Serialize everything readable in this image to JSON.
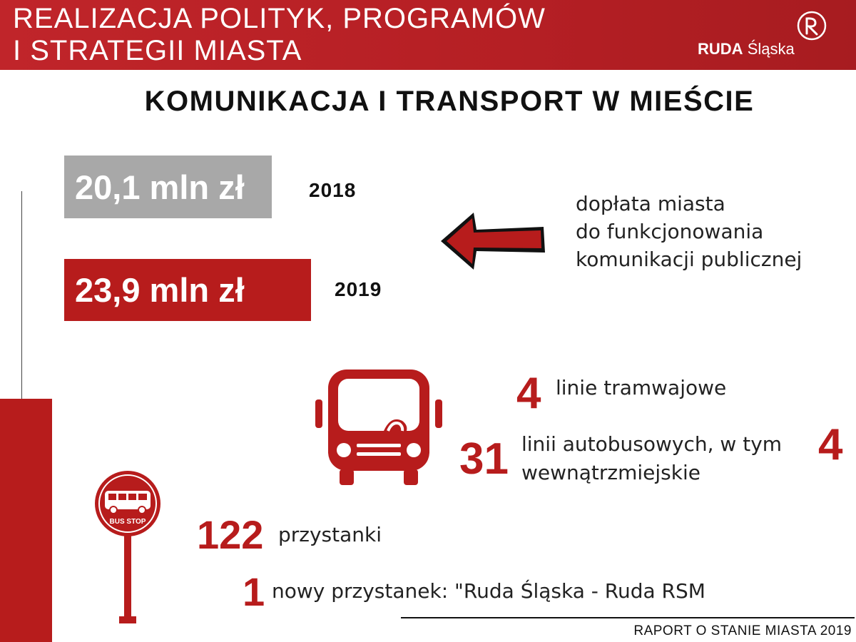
{
  "header": {
    "title_line1": "REALIZACJA POLITYK, PROGRAMÓW",
    "title_line2": "I STRATEGII MIASTA",
    "logo_bold": "RUDA",
    "logo_light": "Śląska",
    "logo_icon": "ruda-slaska-logo-icon"
  },
  "page_title": "KOMUNIKACJA I TRANSPORT W MIEŚCIE",
  "funding": {
    "items": [
      {
        "amount": "20,1 mln zł",
        "year": "2018",
        "color": "#a8a8a8"
      },
      {
        "amount": "23,9 mln zł",
        "year": "2019",
        "color": "#b71c1c"
      }
    ],
    "arrow_icon": "left-arrow-icon",
    "description": [
      "dopłata miasta",
      "do funkcjonowania",
      "komunikacji publicznej"
    ]
  },
  "stats": {
    "bus_icon": "bus-icon",
    "tram_count": "4",
    "tram_label": "linie tramwajowe",
    "bus_count": "31",
    "bus_label_line1": "linii autobusowych, w tym",
    "bus_label_line2": "wewnątrzmiejskie",
    "bus_internal_count": "4",
    "stop_icon": "bus-stop-sign-icon",
    "stop_sign_text": "BUS STOP",
    "stops_count": "122",
    "stops_label": "przystanki",
    "new_stops_count": "1",
    "new_stop_label": "nowy przystanek:  \"Ruda Śląska - Ruda RSM"
  },
  "footer": "RAPORT O STANIE MIASTA 2019",
  "colors": {
    "accent": "#b71c1c",
    "grey": "#a8a8a8"
  }
}
